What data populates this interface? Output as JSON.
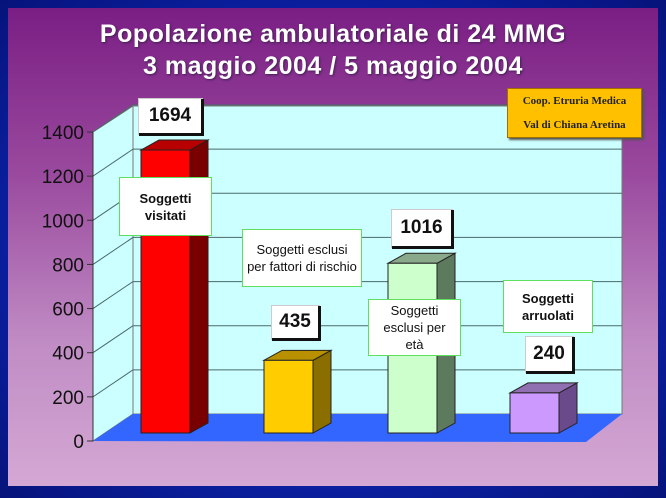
{
  "title_line1": "Popolazione ambulatoriale di 24 MMG",
  "title_line2": "3 maggio 2004 / 5 maggio 2004",
  "logo": {
    "line1": "Coop. Etruria Medica",
    "line2": "Val di Chiana Aretina"
  },
  "chart_data": {
    "type": "bar",
    "style": "3d-column",
    "categories": [
      "Soggetti visitati",
      "Soggetti esclusi per fattori di rischio",
      "Soggetti esclusi per età",
      "Soggetti arruolati"
    ],
    "values": [
      1694,
      435,
      1016,
      240
    ],
    "data_labels": [
      "1694",
      "435",
      "1016",
      "240"
    ],
    "colors": [
      "#ff0000",
      "#ffcc00",
      "#ccffcc",
      "#cc99ff"
    ],
    "ylim": [
      0,
      1400
    ],
    "yticks": [
      "0",
      "200",
      "400",
      "600",
      "800",
      "1000",
      "1200",
      "1400"
    ],
    "grid": true,
    "wall_color": "#ccffff",
    "floor_color": "#3366ff"
  }
}
